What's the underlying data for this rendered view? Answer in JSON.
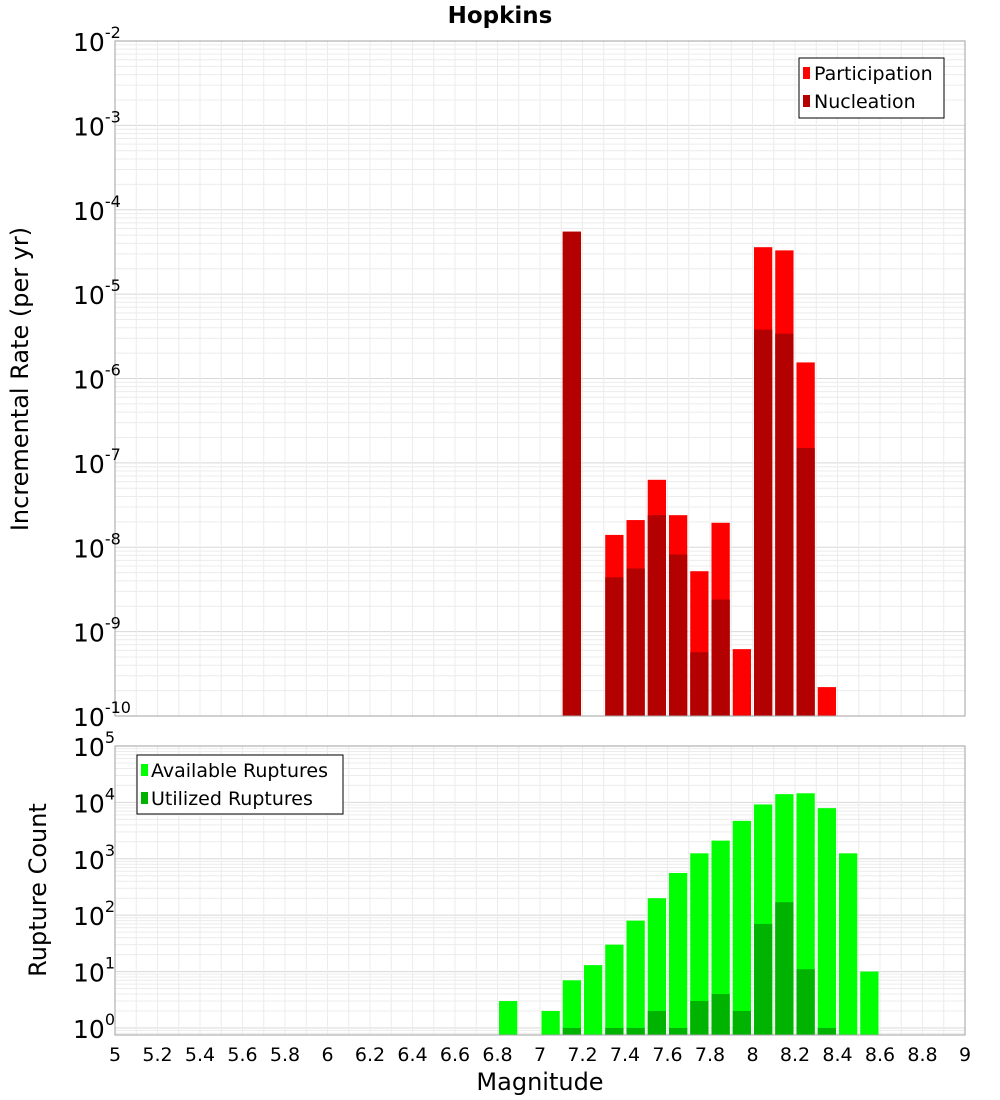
{
  "chart_data": {
    "type": "bar",
    "title": "Hopkins",
    "xlabel": "Magnitude",
    "xlim": [
      5,
      9
    ],
    "xticks": [
      "5",
      "5.2",
      "5.4",
      "5.6",
      "5.8",
      "6",
      "6.2",
      "6.4",
      "6.6",
      "6.8",
      "7",
      "7.2",
      "7.4",
      "7.6",
      "7.8",
      "8",
      "8.2",
      "8.4",
      "8.6",
      "8.8",
      "9"
    ],
    "bin_width": 0.1,
    "grid": true,
    "panels": [
      {
        "ylabel": "Incremental Rate (per yr)",
        "yscale": "log",
        "ylim": [
          1e-10,
          0.01
        ],
        "ytick_exponents": [
          "-10",
          "-9",
          "-8",
          "-7",
          "-6",
          "-5",
          "-4",
          "-3",
          "-2"
        ],
        "ytick_base": "10",
        "legend": "top-right",
        "series": [
          {
            "name": "Participation",
            "color": "#ff0000",
            "points": [
              {
                "x": 7.15,
                "y": 5.5e-05
              },
              {
                "x": 7.35,
                "y": 1.4e-08
              },
              {
                "x": 7.45,
                "y": 2.1e-08
              },
              {
                "x": 7.55,
                "y": 6.3e-08
              },
              {
                "x": 7.65,
                "y": 2.4e-08
              },
              {
                "x": 7.75,
                "y": 5.2e-09
              },
              {
                "x": 7.85,
                "y": 1.95e-08
              },
              {
                "x": 7.95,
                "y": 6.2e-10
              },
              {
                "x": 8.05,
                "y": 3.6e-05
              },
              {
                "x": 8.15,
                "y": 3.3e-05
              },
              {
                "x": 8.25,
                "y": 1.55e-06
              },
              {
                "x": 8.35,
                "y": 2.2e-10
              }
            ]
          },
          {
            "name": "Nucleation",
            "color": "#b30000",
            "points": [
              {
                "x": 7.15,
                "y": 5.5e-05
              },
              {
                "x": 7.35,
                "y": 4.4e-09
              },
              {
                "x": 7.45,
                "y": 5.6e-09
              },
              {
                "x": 7.55,
                "y": 2.4e-08
              },
              {
                "x": 7.65,
                "y": 8.2e-09
              },
              {
                "x": 7.75,
                "y": 5.7e-10
              },
              {
                "x": 7.85,
                "y": 2.4e-09
              },
              {
                "x": 8.05,
                "y": 3.8e-06
              },
              {
                "x": 8.15,
                "y": 3.4e-06
              },
              {
                "x": 8.25,
                "y": 1.5e-07
              }
            ]
          }
        ]
      },
      {
        "ylabel": "Rupture Count",
        "yscale": "log",
        "ylim": [
          0.75,
          100000
        ],
        "ytick_exponents": [
          "0",
          "1",
          "2",
          "3",
          "4",
          "5"
        ],
        "ytick_base": "10",
        "legend": "top-left",
        "series": [
          {
            "name": "Available Ruptures",
            "color": "#00ff00",
            "points": [
              {
                "x": 6.85,
                "y": 3
              },
              {
                "x": 7.05,
                "y": 2
              },
              {
                "x": 7.15,
                "y": 7
              },
              {
                "x": 7.25,
                "y": 13
              },
              {
                "x": 7.35,
                "y": 30
              },
              {
                "x": 7.45,
                "y": 80
              },
              {
                "x": 7.55,
                "y": 200
              },
              {
                "x": 7.65,
                "y": 560
              },
              {
                "x": 7.75,
                "y": 1250
              },
              {
                "x": 7.85,
                "y": 2100
              },
              {
                "x": 7.95,
                "y": 4700
              },
              {
                "x": 8.05,
                "y": 9200
              },
              {
                "x": 8.15,
                "y": 14000
              },
              {
                "x": 8.25,
                "y": 14500
              },
              {
                "x": 8.35,
                "y": 7900
              },
              {
                "x": 8.45,
                "y": 1250
              },
              {
                "x": 8.55,
                "y": 10
              }
            ]
          },
          {
            "name": "Utilized Ruptures",
            "color": "#00b300",
            "points": [
              {
                "x": 7.15,
                "y": 1
              },
              {
                "x": 7.35,
                "y": 1
              },
              {
                "x": 7.45,
                "y": 1
              },
              {
                "x": 7.55,
                "y": 2
              },
              {
                "x": 7.65,
                "y": 1
              },
              {
                "x": 7.75,
                "y": 3
              },
              {
                "x": 7.85,
                "y": 4
              },
              {
                "x": 7.95,
                "y": 2
              },
              {
                "x": 8.05,
                "y": 70
              },
              {
                "x": 8.15,
                "y": 170
              },
              {
                "x": 8.25,
                "y": 11
              },
              {
                "x": 8.35,
                "y": 1
              }
            ]
          }
        ]
      }
    ]
  }
}
